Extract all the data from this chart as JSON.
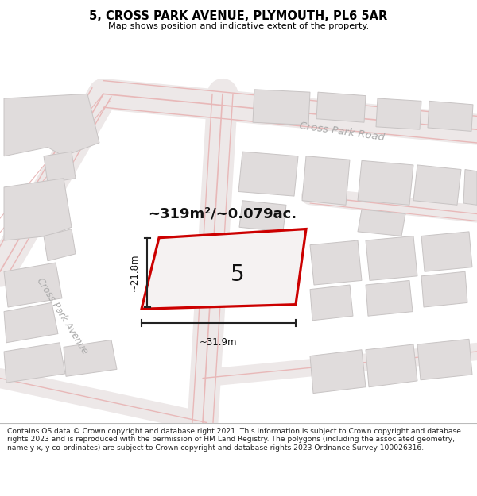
{
  "title": "5, CROSS PARK AVENUE, PLYMOUTH, PL6 5AR",
  "subtitle": "Map shows position and indicative extent of the property.",
  "area_label": "~319m²/~0.079ac.",
  "plot_number": "5",
  "dim_height": "~21.8m",
  "dim_width": "~31.9m",
  "road_label_1": "Cross Park Road",
  "road_label_2": "Cross Park Avenue",
  "footer": "Contains OS data © Crown copyright and database right 2021. This information is subject to Crown copyright and database rights 2023 and is reproduced with the permission of HM Land Registry. The polygons (including the associated geometry, namely x, y co-ordinates) are subject to Crown copyright and database rights 2023 Ordnance Survey 100026316.",
  "map_bg": "#f2efef",
  "road_bg": "#f7f5f5",
  "building_fill": "#e0dcdc",
  "building_edge": "#c8c4c4",
  "road_line_color": "#e8b8b8",
  "road_fill_color": "#f0e8e8",
  "plot_outline_color": "#cc0000",
  "black": "#111111",
  "white": "#ffffff",
  "dim_line_color": "#222222",
  "road_text_color": "#aaaaaa",
  "footer_text": "#222222"
}
